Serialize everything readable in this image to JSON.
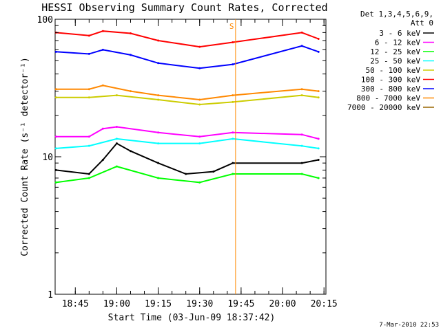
{
  "chart_data": {
    "type": "line",
    "title": "HESSI Observing Summary Count Rates, Corrected",
    "xlabel": "Start Time (03-Jun-09 18:37:42)",
    "ylabel": "Corrected Count Rate (s⁻¹ detector⁻¹)",
    "yscale": "log",
    "ylim": [
      1,
      100
    ],
    "xlim_minutes_since_1837_42": [
      0,
      98
    ],
    "x_ticks": [
      "18:45",
      "19:00",
      "19:15",
      "19:30",
      "19:45",
      "20:00",
      "20:15"
    ],
    "y_ticks": [
      "1",
      "10",
      "100"
    ],
    "grid": false,
    "legend_position": "top-right",
    "legend_header": [
      "Det 1,3,4,5,6,9,",
      "Att 0"
    ],
    "series": [
      {
        "name": "3 - 6 keV",
        "color": "#000000",
        "x": [
          "18:38",
          "18:50",
          "18:55",
          "19:00",
          "19:05",
          "19:15",
          "19:25",
          "19:35",
          "19:42",
          "20:07",
          "20:13"
        ],
        "values": [
          8.0,
          7.5,
          9.5,
          12.5,
          11.0,
          9.0,
          7.5,
          7.8,
          9.0,
          9.0,
          9.5
        ]
      },
      {
        "name": "6 - 12 keV",
        "color": "#ff00ff",
        "x": [
          "18:38",
          "18:50",
          "18:55",
          "19:00",
          "19:15",
          "19:30",
          "19:42",
          "20:07",
          "20:13"
        ],
        "values": [
          14.0,
          14.0,
          16.0,
          16.5,
          15.0,
          14.0,
          15.0,
          14.5,
          13.5
        ]
      },
      {
        "name": "12 - 25 keV",
        "color": "#00ff00",
        "x": [
          "18:38",
          "18:50",
          "19:00",
          "19:15",
          "19:30",
          "19:42",
          "20:07",
          "20:13"
        ],
        "values": [
          6.5,
          7.0,
          8.5,
          7.0,
          6.5,
          7.5,
          7.5,
          7.0
        ]
      },
      {
        "name": "25 - 50 keV",
        "color": "#00ffff",
        "x": [
          "18:38",
          "18:50",
          "19:00",
          "19:15",
          "19:30",
          "19:42",
          "20:07",
          "20:13"
        ],
        "values": [
          11.5,
          12.0,
          13.5,
          12.5,
          12.5,
          13.5,
          12.0,
          11.5
        ]
      },
      {
        "name": "50 - 100 keV",
        "color": "#cccc00",
        "x": [
          "18:38",
          "18:50",
          "19:00",
          "19:15",
          "19:30",
          "19:42",
          "20:07",
          "20:13"
        ],
        "values": [
          27.0,
          27.0,
          28.0,
          26.0,
          24.0,
          25.0,
          28.0,
          27.0
        ]
      },
      {
        "name": "100 - 300 keV",
        "color": "#ff0000",
        "x": [
          "18:38",
          "18:50",
          "18:55",
          "19:05",
          "19:15",
          "19:30",
          "19:42",
          "20:07",
          "20:13"
        ],
        "values": [
          80.0,
          76.0,
          82.0,
          79.0,
          70.0,
          63.0,
          68.0,
          80.0,
          72.0
        ]
      },
      {
        "name": "300 - 800 keV",
        "color": "#0000ff",
        "x": [
          "18:38",
          "18:50",
          "18:55",
          "19:05",
          "19:15",
          "19:30",
          "19:42",
          "20:07",
          "20:13"
        ],
        "values": [
          58.0,
          56.0,
          60.0,
          55.0,
          48.0,
          44.0,
          47.0,
          64.0,
          58.0
        ]
      },
      {
        "name": "800 - 7000 keV",
        "color": "#ff8800",
        "x": [
          "18:38",
          "18:50",
          "18:55",
          "19:05",
          "19:15",
          "19:30",
          "19:42",
          "20:07",
          "20:13"
        ],
        "values": [
          31.0,
          31.0,
          33.0,
          30.0,
          28.0,
          26.0,
          28.0,
          31.0,
          30.0
        ]
      },
      {
        "name": "7000 - 20000 keV",
        "color": "#996600",
        "x": [],
        "values": []
      }
    ],
    "annotations": [
      {
        "label": "S",
        "color": "#ff8800",
        "x": "19:43"
      }
    ],
    "footer_date": "7-Mar-2010 22:53"
  }
}
